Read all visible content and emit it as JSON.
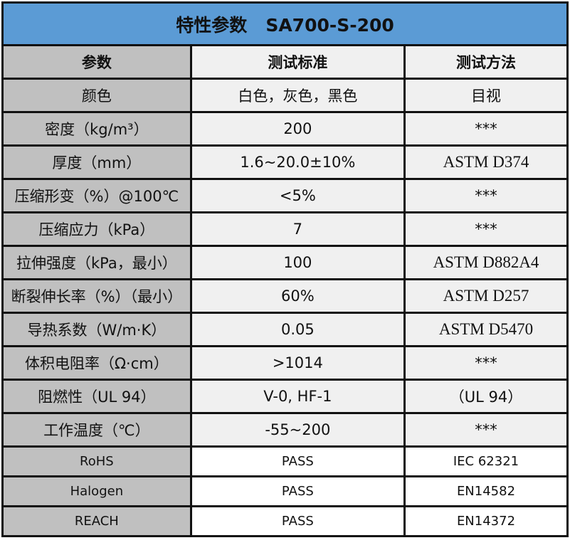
{
  "title": "特性参数   SA700-S-200",
  "headers": [
    "参数",
    "测试标准",
    "测试方法"
  ],
  "rows": [
    {
      "param": "颜色",
      "standard": "白色，灰色，黑色",
      "method": "目视"
    },
    {
      "param": "密度（kg/m³）",
      "standard": "200",
      "method": "***"
    },
    {
      "param": "厚度（mm）",
      "standard": "1.6~20.0±10%",
      "method": "ASTM D374"
    },
    {
      "param": "压缩形变（%）@100℃",
      "standard": "<5%",
      "method": "***"
    },
    {
      "param": "压缩应力（kPa）",
      "standard": "7",
      "method": "***"
    },
    {
      "param": "拉伸强度（kPa，最小）",
      "standard": "100",
      "method": "ASTM D882A4"
    },
    {
      "param": "断裂伸长率（%）（最小）",
      "standard": "60%",
      "method": "ASTM D257"
    },
    {
      "param": "导热系数（W/m·K）",
      "standard": "0.05",
      "method": "ASTM D5470"
    },
    {
      "param": "体积电阻率（Ω·cm）",
      "standard": ">1014",
      "method": "***"
    },
    {
      "param": "阻燃性（UL 94）",
      "standard": "V-0, HF-1",
      "method": "（UL 94）"
    },
    {
      "param": "工作温度（℃）",
      "standard": "-55~200",
      "method": "***"
    }
  ],
  "certifications": [
    {
      "param": "RoHS",
      "standard": "PASS",
      "method": "IEC 62321"
    },
    {
      "param": "Halogen",
      "standard": "PASS",
      "method": "EN14582"
    },
    {
      "param": "REACH",
      "standard": "PASS",
      "method": "EN14372"
    }
  ],
  "colors": {
    "title_bg": "#5b9bd5",
    "param_col_bg": "#c0c0c0",
    "value_bg": "#f0f0f0"
  }
}
